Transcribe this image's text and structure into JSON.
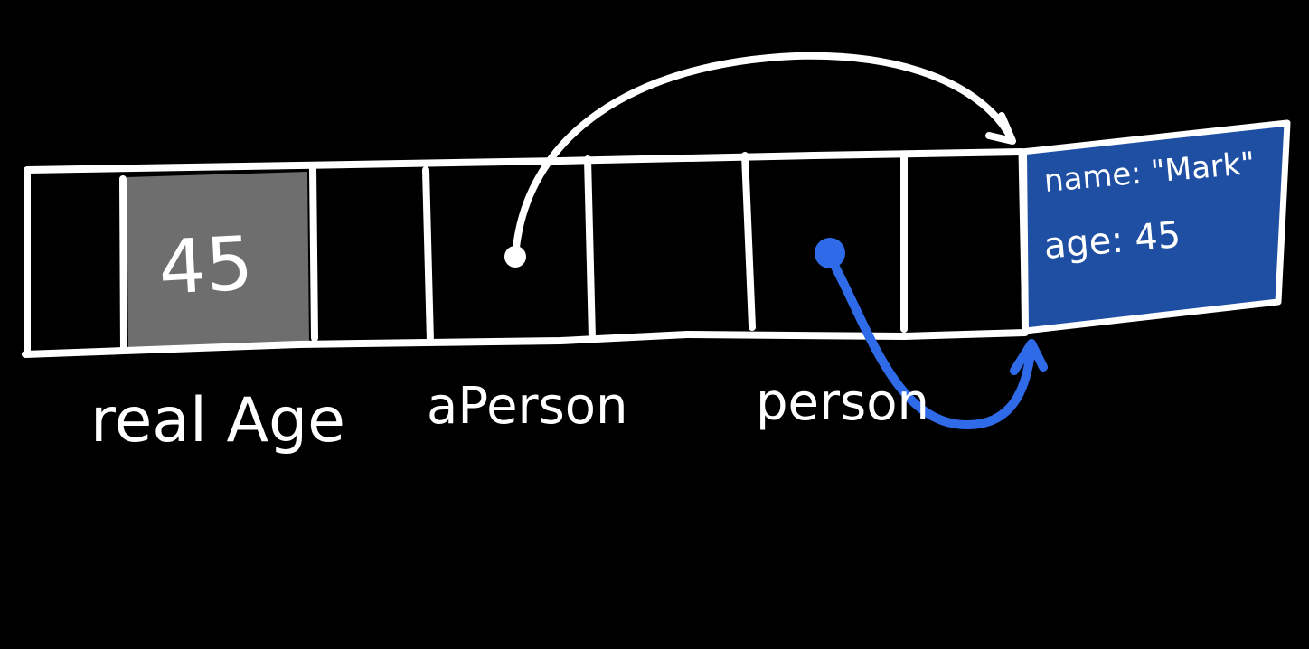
{
  "colors": {
    "background": "#000000",
    "stroke": "#ffffff",
    "primitive_cell_fill": "#6e6e6e",
    "object_fill": "#1e4fa3",
    "pointer_blue": "#2f6ae8"
  },
  "memory": {
    "primitive_value": "45",
    "object_fields": [
      {
        "text": "name: \"Mark\""
      },
      {
        "text": "age: 45"
      }
    ]
  },
  "labels": {
    "real_age": "real Age",
    "a_person": "aPerson",
    "person": "person"
  }
}
